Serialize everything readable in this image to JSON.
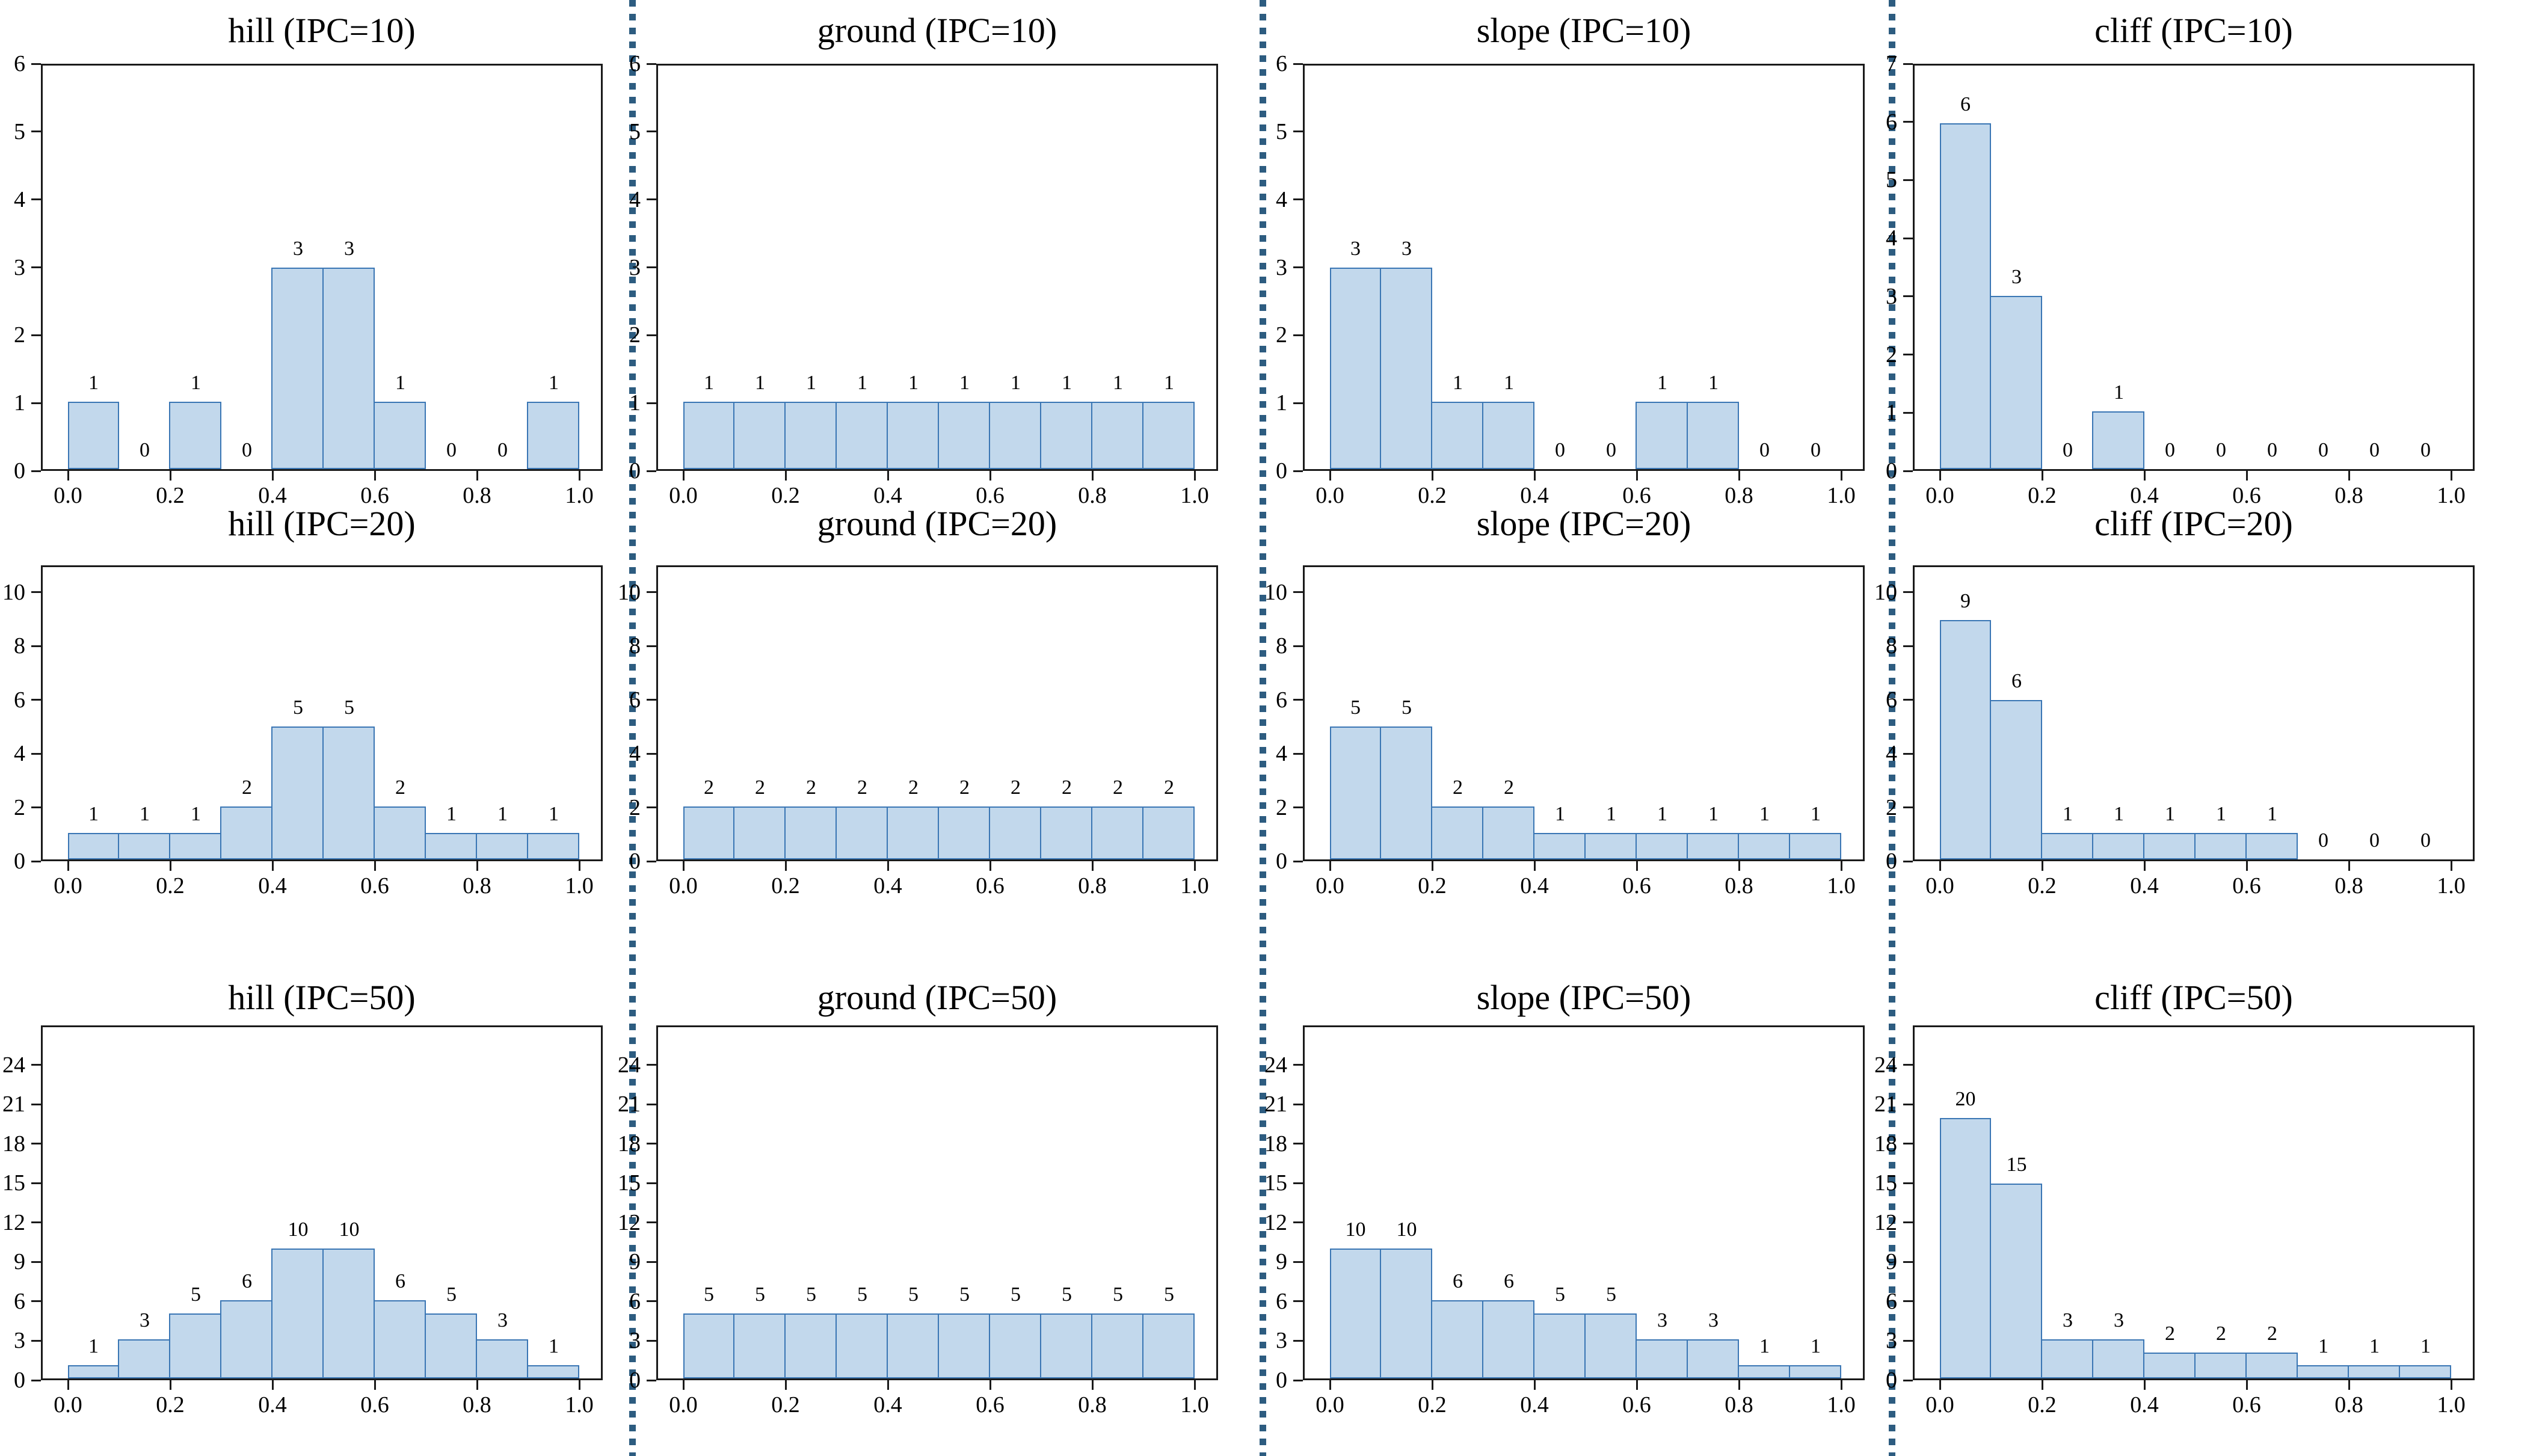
{
  "figure": {
    "x_tick_labels": [
      "0.0",
      "0.2",
      "0.4",
      "0.6",
      "0.8",
      "1.0"
    ],
    "bin_edges": [
      0.0,
      0.1,
      0.2,
      0.3,
      0.4,
      0.5,
      0.6,
      0.7,
      0.8,
      0.9,
      1.0
    ],
    "terrains": [
      "hill",
      "ground",
      "slope",
      "cliff"
    ],
    "ipc_levels": [
      10,
      20,
      50
    ],
    "colors": {
      "bar_fill": "#c2d8ec",
      "bar_edge": "#3a76b4",
      "separator": "#2d5c80",
      "axis": "#1a1a1a",
      "text": "#000000",
      "background": "#ffffff"
    }
  },
  "chart_data": [
    {
      "type": "bar",
      "terrain": "hill",
      "ipc": 10,
      "title": "hill (IPC=10)",
      "values": [
        1,
        0,
        1,
        0,
        3,
        3,
        1,
        0,
        0,
        1
      ],
      "y_ticks": [
        0,
        1,
        2,
        3,
        4,
        5,
        6
      ],
      "ylim": [
        0,
        6
      ],
      "grid": false,
      "legend": "none"
    },
    {
      "type": "bar",
      "terrain": "ground",
      "ipc": 10,
      "title": "ground (IPC=10)",
      "values": [
        1,
        1,
        1,
        1,
        1,
        1,
        1,
        1,
        1,
        1
      ],
      "y_ticks": [
        0,
        1,
        2,
        3,
        4,
        5,
        6
      ],
      "ylim": [
        0,
        6
      ],
      "grid": false,
      "legend": "none"
    },
    {
      "type": "bar",
      "terrain": "slope",
      "ipc": 10,
      "title": "slope (IPC=10)",
      "values": [
        3,
        3,
        1,
        1,
        0,
        0,
        1,
        1,
        0,
        0
      ],
      "y_ticks": [
        0,
        1,
        2,
        3,
        4,
        5,
        6
      ],
      "ylim": [
        0,
        6
      ],
      "grid": false,
      "legend": "none"
    },
    {
      "type": "bar",
      "terrain": "cliff",
      "ipc": 10,
      "title": "cliff (IPC=10)",
      "values": [
        6,
        3,
        0,
        1,
        0,
        0,
        0,
        0,
        0,
        0
      ],
      "y_ticks": [
        0,
        1,
        2,
        3,
        4,
        5,
        6,
        7
      ],
      "ylim": [
        0,
        7
      ],
      "grid": false,
      "legend": "none"
    },
    {
      "type": "bar",
      "terrain": "hill",
      "ipc": 20,
      "title": "hill (IPC=20)",
      "values": [
        1,
        1,
        1,
        2,
        5,
        5,
        2,
        1,
        1,
        1
      ],
      "y_ticks": [
        0,
        2,
        4,
        6,
        8,
        10
      ],
      "ylim": [
        0,
        11
      ],
      "grid": false,
      "legend": "none"
    },
    {
      "type": "bar",
      "terrain": "ground",
      "ipc": 20,
      "title": "ground (IPC=20)",
      "values": [
        2,
        2,
        2,
        2,
        2,
        2,
        2,
        2,
        2,
        2
      ],
      "y_ticks": [
        0,
        2,
        4,
        6,
        8,
        10
      ],
      "ylim": [
        0,
        11
      ],
      "grid": false,
      "legend": "none"
    },
    {
      "type": "bar",
      "terrain": "slope",
      "ipc": 20,
      "title": "slope (IPC=20)",
      "values": [
        5,
        5,
        2,
        2,
        1,
        1,
        1,
        1,
        1,
        1
      ],
      "y_ticks": [
        0,
        2,
        4,
        6,
        8,
        10
      ],
      "ylim": [
        0,
        11
      ],
      "grid": false,
      "legend": "none"
    },
    {
      "type": "bar",
      "terrain": "cliff",
      "ipc": 20,
      "title": "cliff (IPC=20)",
      "values": [
        9,
        6,
        1,
        1,
        1,
        1,
        1,
        0,
        0,
        0
      ],
      "y_ticks": [
        0,
        2,
        4,
        6,
        8,
        10
      ],
      "ylim": [
        0,
        11
      ],
      "grid": false,
      "legend": "none"
    },
    {
      "type": "bar",
      "terrain": "hill",
      "ipc": 50,
      "title": "hill (IPC=50)",
      "values": [
        1,
        3,
        5,
        6,
        10,
        10,
        6,
        5,
        3,
        1
      ],
      "y_ticks": [
        0,
        3,
        6,
        9,
        12,
        15,
        18,
        21,
        24
      ],
      "ylim": [
        0,
        27
      ],
      "grid": false,
      "legend": "none"
    },
    {
      "type": "bar",
      "terrain": "ground",
      "ipc": 50,
      "title": "ground (IPC=50)",
      "values": [
        5,
        5,
        5,
        5,
        5,
        5,
        5,
        5,
        5,
        5
      ],
      "y_ticks": [
        0,
        3,
        6,
        9,
        12,
        15,
        18,
        21,
        24
      ],
      "ylim": [
        0,
        27
      ],
      "grid": false,
      "legend": "none"
    },
    {
      "type": "bar",
      "terrain": "slope",
      "ipc": 50,
      "title": "slope (IPC=50)",
      "values": [
        10,
        10,
        6,
        6,
        5,
        5,
        3,
        3,
        1,
        1
      ],
      "y_ticks": [
        0,
        3,
        6,
        9,
        12,
        15,
        18,
        21,
        24
      ],
      "ylim": [
        0,
        27
      ],
      "grid": false,
      "legend": "none"
    },
    {
      "type": "bar",
      "terrain": "cliff",
      "ipc": 50,
      "title": "cliff (IPC=50)",
      "values": [
        20,
        15,
        3,
        3,
        2,
        2,
        2,
        1,
        1,
        1
      ],
      "y_ticks": [
        0,
        3,
        6,
        9,
        12,
        15,
        18,
        21,
        24
      ],
      "ylim": [
        0,
        27
      ],
      "grid": false,
      "legend": "none"
    }
  ]
}
